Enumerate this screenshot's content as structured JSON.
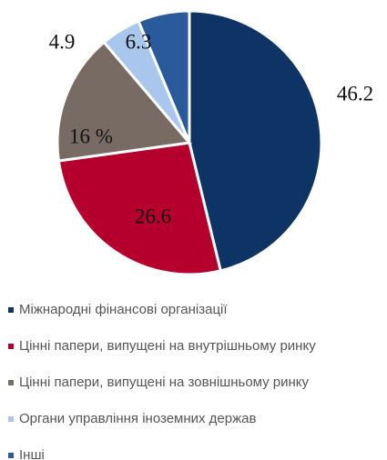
{
  "chart_data": {
    "type": "pie",
    "categories": [
      "Міжнародні фінансові організації",
      "Цінні папери, випущені на внутрішньому ринку",
      "Цінні папери, випущені на зовнішньому ринку",
      "Органи управління іноземних держав",
      "Інші"
    ],
    "values": [
      46.2,
      26.6,
      16,
      4.9,
      6.3
    ],
    "value_labels": [
      "46.2",
      "26.6",
      "16 %",
      "4.9",
      "6.3"
    ],
    "colors": [
      "#0e3466",
      "#b5002d",
      "#786b64",
      "#a9c7ec",
      "#2a5a9c"
    ]
  }
}
